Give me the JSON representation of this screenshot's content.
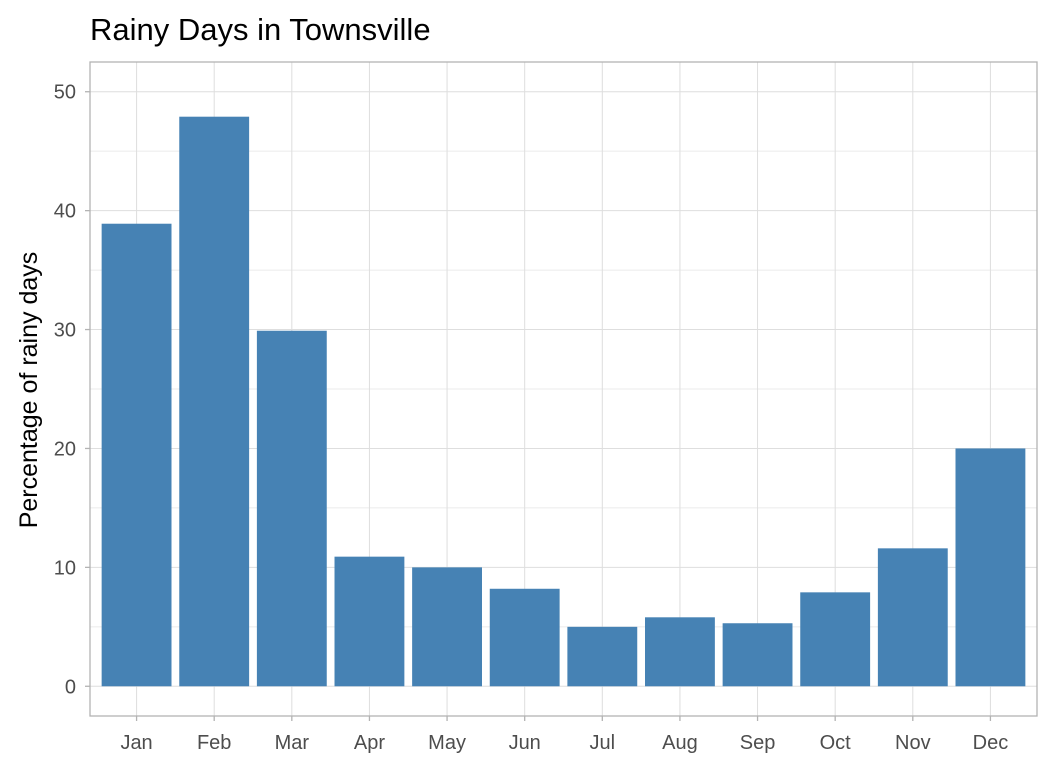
{
  "chart_data": {
    "type": "bar",
    "title": "Rainy Days in Townsville",
    "xlabel": "",
    "ylabel": "Percentage of rainy days",
    "categories": [
      "Jan",
      "Feb",
      "Mar",
      "Apr",
      "May",
      "Jun",
      "Jul",
      "Aug",
      "Sep",
      "Oct",
      "Nov",
      "Dec"
    ],
    "values": [
      38.9,
      47.9,
      29.9,
      10.9,
      10.0,
      8.2,
      5.0,
      5.8,
      5.3,
      7.9,
      11.6,
      20.0
    ],
    "ylim": [
      0,
      50
    ],
    "yticks": [
      0,
      10,
      20,
      30,
      40,
      50
    ],
    "grid": true,
    "bar_color": "#4682B4"
  }
}
